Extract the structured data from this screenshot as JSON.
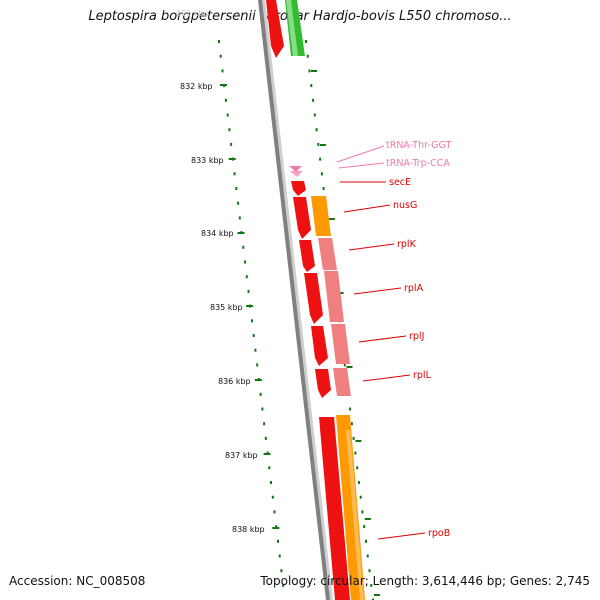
{
  "title": "Leptospira borgpetersenii serovar Hardjo-bovis L550 chromoso...",
  "footer": {
    "accession": "Accession: NC_008508",
    "summary": "Topology: circular; Length: 3,614,446 bp; Genes: 2,745"
  },
  "scale_labels": [
    "832 kbp",
    "833 kbp",
    "834 kbp",
    "835 kbp",
    "836 kbp",
    "837 kbp",
    "838 kbp"
  ],
  "gene_labels": [
    {
      "name": "tRNA-Thr-GGT",
      "kind": "trna"
    },
    {
      "name": "tRNA-Trp-CCA",
      "kind": "trna"
    },
    {
      "name": "secE",
      "kind": "cds"
    },
    {
      "name": "nusG",
      "kind": "cds"
    },
    {
      "name": "rplK",
      "kind": "cds"
    },
    {
      "name": "rplA",
      "kind": "cds"
    },
    {
      "name": "rplJ",
      "kind": "cds"
    },
    {
      "name": "rplL",
      "kind": "cds"
    },
    {
      "name": "rpoB",
      "kind": "cds"
    }
  ],
  "colors": {
    "backbone": "#808080",
    "cds": "#ee1111",
    "trna": "#f07aaa",
    "orange_track": "#ff9900",
    "pink_track": "#f08080",
    "green_track": "#33bb33",
    "scale_ticks": "#117711"
  }
}
